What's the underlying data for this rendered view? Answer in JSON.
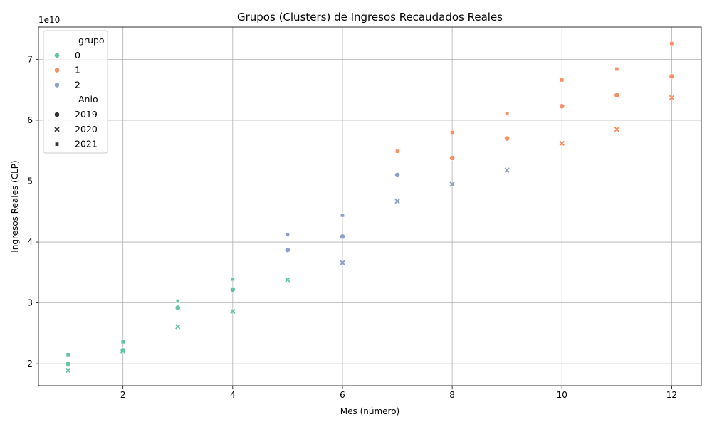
{
  "chart_data": {
    "type": "scatter",
    "title": "Grupos (Clusters) de Ingresos Recaudados Reales",
    "xlabel": "Mes (número)",
    "ylabel": "Ingresos Reales (CLP)",
    "y_offset_text": "1e10",
    "y_scale_factor": 10000000000,
    "xlim": [
      0.46,
      12.54
    ],
    "ylim": [
      16400000000,
      75300000000
    ],
    "x_ticks": [
      2,
      4,
      6,
      8,
      10,
      12
    ],
    "y_ticks": [
      2,
      3,
      4,
      5,
      6,
      7
    ],
    "grid": true,
    "legend": {
      "placement": "top-left",
      "hue_title": "grupo",
      "hue_entries": [
        {
          "label": "0",
          "color": "#66c2a5"
        },
        {
          "label": "1",
          "color": "#fc8d62"
        },
        {
          "label": "2",
          "color": "#8da0cb"
        }
      ],
      "style_title": "Anio",
      "style_entries": [
        {
          "label": "2019",
          "marker": "circle"
        },
        {
          "label": "2020",
          "marker": "x"
        },
        {
          "label": "2021",
          "marker": "square"
        }
      ]
    },
    "group_colors": {
      "0": "#66c2a5",
      "1": "#fc8d62",
      "2": "#8da0cb"
    },
    "year_markers": {
      "2019": "circle",
      "2020": "x",
      "2021": "square"
    },
    "points": [
      {
        "x": 1,
        "y": 20000000000,
        "grupo": "0",
        "anio": "2019"
      },
      {
        "x": 2,
        "y": 22200000000,
        "grupo": "0",
        "anio": "2019"
      },
      {
        "x": 3,
        "y": 29200000000,
        "grupo": "0",
        "anio": "2019"
      },
      {
        "x": 4,
        "y": 32200000000,
        "grupo": "0",
        "anio": "2019"
      },
      {
        "x": 5,
        "y": 38700000000,
        "grupo": "2",
        "anio": "2019"
      },
      {
        "x": 6,
        "y": 40900000000,
        "grupo": "2",
        "anio": "2019"
      },
      {
        "x": 7,
        "y": 51000000000,
        "grupo": "2",
        "anio": "2019"
      },
      {
        "x": 8,
        "y": 53800000000,
        "grupo": "1",
        "anio": "2019"
      },
      {
        "x": 9,
        "y": 57000000000,
        "grupo": "1",
        "anio": "2019"
      },
      {
        "x": 10,
        "y": 62300000000,
        "grupo": "1",
        "anio": "2019"
      },
      {
        "x": 11,
        "y": 64100000000,
        "grupo": "1",
        "anio": "2019"
      },
      {
        "x": 12,
        "y": 67200000000,
        "grupo": "1",
        "anio": "2019"
      },
      {
        "x": 1,
        "y": 18900000000,
        "grupo": "0",
        "anio": "2020"
      },
      {
        "x": 2,
        "y": 22100000000,
        "grupo": "0",
        "anio": "2020"
      },
      {
        "x": 3,
        "y": 26100000000,
        "grupo": "0",
        "anio": "2020"
      },
      {
        "x": 4,
        "y": 28600000000,
        "grupo": "0",
        "anio": "2020"
      },
      {
        "x": 5,
        "y": 33800000000,
        "grupo": "0",
        "anio": "2020"
      },
      {
        "x": 6,
        "y": 36600000000,
        "grupo": "2",
        "anio": "2020"
      },
      {
        "x": 7,
        "y": 46700000000,
        "grupo": "2",
        "anio": "2020"
      },
      {
        "x": 8,
        "y": 49500000000,
        "grupo": "2",
        "anio": "2020"
      },
      {
        "x": 9,
        "y": 51800000000,
        "grupo": "2",
        "anio": "2020"
      },
      {
        "x": 10,
        "y": 56200000000,
        "grupo": "1",
        "anio": "2020"
      },
      {
        "x": 11,
        "y": 58500000000,
        "grupo": "1",
        "anio": "2020"
      },
      {
        "x": 12,
        "y": 63700000000,
        "grupo": "1",
        "anio": "2020"
      },
      {
        "x": 1,
        "y": 21500000000,
        "grupo": "0",
        "anio": "2021"
      },
      {
        "x": 2,
        "y": 23600000000,
        "grupo": "0",
        "anio": "2021"
      },
      {
        "x": 3,
        "y": 30300000000,
        "grupo": "0",
        "anio": "2021"
      },
      {
        "x": 4,
        "y": 33900000000,
        "grupo": "0",
        "anio": "2021"
      },
      {
        "x": 5,
        "y": 41200000000,
        "grupo": "2",
        "anio": "2021"
      },
      {
        "x": 6,
        "y": 44400000000,
        "grupo": "2",
        "anio": "2021"
      },
      {
        "x": 7,
        "y": 54900000000,
        "grupo": "1",
        "anio": "2021"
      },
      {
        "x": 8,
        "y": 58000000000,
        "grupo": "1",
        "anio": "2021"
      },
      {
        "x": 9,
        "y": 61100000000,
        "grupo": "1",
        "anio": "2021"
      },
      {
        "x": 10,
        "y": 66600000000,
        "grupo": "1",
        "anio": "2021"
      },
      {
        "x": 11,
        "y": 68400000000,
        "grupo": "1",
        "anio": "2021"
      },
      {
        "x": 12,
        "y": 72600000000,
        "grupo": "1",
        "anio": "2021"
      }
    ]
  }
}
